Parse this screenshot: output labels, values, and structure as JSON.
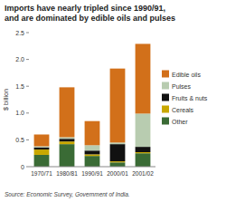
{
  "chart_data": {
    "type": "bar",
    "stacked": true,
    "title": "Imports have nearly tripled since 1990/91,",
    "subtitle": "and are dominated by edible oils and pulses",
    "y_label": "$ billion",
    "source": "Source: Economic Survey, Government of India.",
    "categories": [
      "1970/71",
      "1980/81",
      "1990/91",
      "2000/01",
      "2001/02"
    ],
    "series": [
      {
        "name": "Other",
        "color": "#3a6b35",
        "values": [
          0.22,
          0.42,
          0.2,
          0.08,
          0.25
        ]
      },
      {
        "name": "Cereals",
        "color": "#c9a800",
        "values": [
          0.1,
          0.05,
          0.03,
          0.02,
          0.02
        ]
      },
      {
        "name": "Fruits & nuts",
        "color": "#111111",
        "values": [
          0.04,
          0.05,
          0.07,
          0.32,
          0.1
        ]
      },
      {
        "name": "Pulses",
        "color": "#b8ccb0",
        "values": [
          0.02,
          0.03,
          0.1,
          0.03,
          0.62
        ]
      },
      {
        "name": "Edible oils",
        "color": "#d2701a",
        "values": [
          0.22,
          0.93,
          0.45,
          1.38,
          1.3
        ]
      }
    ],
    "ylim": [
      0,
      2.5
    ],
    "yticks": [
      0,
      0.5,
      {
        "value": 1.0,
        "label": "1.0"
      },
      1.5,
      {
        "value": 2.0,
        "label": "2.0"
      },
      2.5
    ],
    "grid": false,
    "legend": "right"
  }
}
